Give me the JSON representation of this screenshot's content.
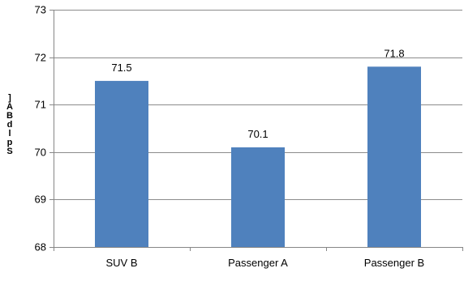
{
  "chart_data": {
    "type": "bar",
    "categories": [
      "SUV B",
      "Passenger A",
      "Passenger B"
    ],
    "values": [
      71.5,
      70.1,
      71.8
    ],
    "data_labels": [
      "71.5",
      "70.1",
      "71.8"
    ],
    "ylim": [
      68,
      73
    ],
    "yticks": [
      68,
      69,
      70,
      71,
      72,
      73
    ],
    "ylabel_chars": [
      "]",
      "A",
      "B",
      "d",
      "l",
      "p",
      "S"
    ],
    "grid": true,
    "bar_color": "#4f81bd",
    "gridline_color": "#8c8c8c",
    "axis_color": "#868686"
  }
}
